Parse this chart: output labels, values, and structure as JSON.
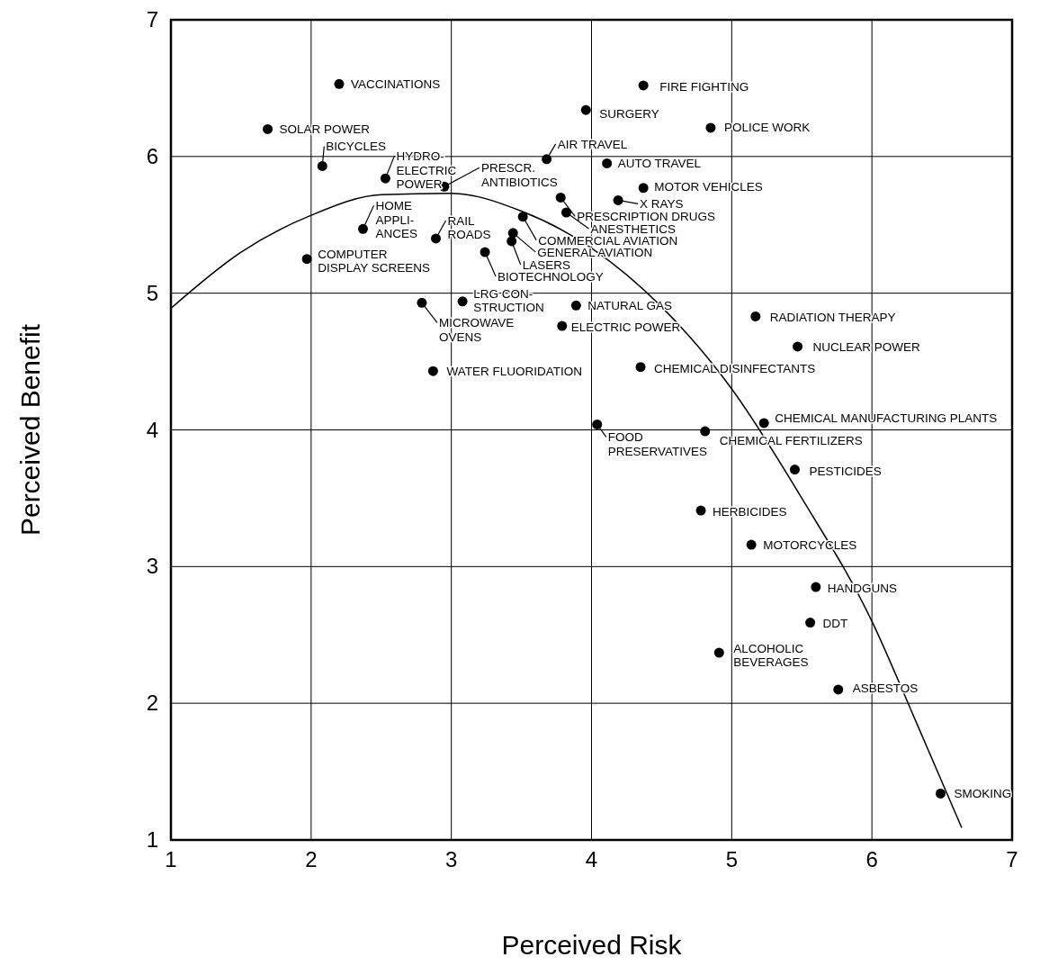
{
  "chart_data": {
    "type": "scatter",
    "xlabel": "Perceived Risk",
    "ylabel": "Perceived Benefit",
    "xlim": [
      1,
      7
    ],
    "ylim": [
      1,
      7
    ],
    "xticks": [
      1,
      2,
      3,
      4,
      5,
      6,
      7
    ],
    "yticks": [
      1,
      2,
      3,
      4,
      5,
      6,
      7
    ],
    "grid": true,
    "marker": "circle",
    "series": [
      {
        "color": "#000000",
        "x": [
          2.2,
          1.69,
          2.08,
          2.53,
          2.95,
          3.68,
          3.96,
          4.37,
          4.85,
          4.11,
          4.37,
          4.19,
          3.78,
          3.82,
          3.51,
          3.44,
          3.43,
          3.24,
          2.37,
          2.89,
          1.97,
          3.08,
          2.79,
          3.89,
          3.79,
          2.87,
          4.35,
          5.17,
          5.47,
          5.23,
          4.04,
          4.81,
          5.45,
          4.78,
          5.14,
          5.6,
          5.56,
          4.91,
          5.76,
          6.49
        ],
        "values": [
          6.53,
          6.2,
          5.93,
          5.84,
          5.78,
          5.98,
          6.34,
          6.52,
          6.21,
          5.95,
          5.77,
          5.68,
          5.7,
          5.59,
          5.56,
          5.44,
          5.38,
          5.3,
          5.47,
          5.4,
          5.25,
          4.94,
          4.93,
          4.91,
          4.76,
          4.43,
          4.46,
          4.83,
          4.61,
          4.05,
          4.04,
          3.99,
          3.71,
          3.41,
          3.16,
          2.85,
          2.59,
          2.37,
          2.1,
          1.34
        ]
      },
      {
        "type": "line",
        "color": "#000000",
        "marker": "none",
        "x": [
          1,
          1.5,
          2,
          2.5,
          3,
          3.5,
          4,
          4.5,
          5,
          5.5,
          6,
          6.3,
          6.64
        ],
        "values": [
          4.89,
          5.3,
          5.57,
          5.72,
          5.73,
          5.6,
          5.33,
          4.9,
          4.3,
          3.5,
          2.6,
          1.9,
          1.09
        ]
      }
    ],
    "annotations": [
      {
        "text": "VACCINATIONS",
        "x": 2.2,
        "y": 6.53
      },
      {
        "text": "SOLAR POWER",
        "x": 1.69,
        "y": 6.2
      },
      {
        "text": "BICYCLES",
        "x": 2.08,
        "y": 5.93
      },
      {
        "text": "HYDRO-\nELECTRIC\nPOWER",
        "x": 2.53,
        "y": 5.84
      },
      {
        "text": "PRESCR.\nANTIBIOTICS",
        "x": 2.95,
        "y": 5.78
      },
      {
        "text": "AIR TRAVEL",
        "x": 3.68,
        "y": 5.98
      },
      {
        "text": "SURGERY",
        "x": 3.96,
        "y": 6.34
      },
      {
        "text": "FIRE FIGHTING",
        "x": 4.37,
        "y": 6.52
      },
      {
        "text": "POLICE WORK",
        "x": 4.85,
        "y": 6.21
      },
      {
        "text": "AUTO TRAVEL",
        "x": 4.11,
        "y": 5.95
      },
      {
        "text": "MOTOR VEHICLES",
        "x": 4.37,
        "y": 5.77
      },
      {
        "text": "X RAYS",
        "x": 4.19,
        "y": 5.68
      },
      {
        "text": "PRESCRIPTION DRUGS",
        "x": 3.78,
        "y": 5.7
      },
      {
        "text": "ANESTHETICS",
        "x": 3.82,
        "y": 5.59
      },
      {
        "text": "COMMERCIAL AVIATION",
        "x": 3.51,
        "y": 5.56
      },
      {
        "text": "GENERAL AVIATION",
        "x": 3.44,
        "y": 5.44
      },
      {
        "text": "LASERS",
        "x": 3.43,
        "y": 5.38
      },
      {
        "text": "BIOTECHNOLOGY",
        "x": 3.24,
        "y": 5.3
      },
      {
        "text": "HOME\nAPPLI-\nANCES",
        "x": 2.37,
        "y": 5.47
      },
      {
        "text": "RAIL\nROADS",
        "x": 2.89,
        "y": 5.4
      },
      {
        "text": "COMPUTER\nDISPLAY SCREENS",
        "x": 1.97,
        "y": 5.25
      },
      {
        "text": "LRG CON-\nSTRUCTION",
        "x": 3.08,
        "y": 4.94
      },
      {
        "text": "MICROWAVE\nOVENS",
        "x": 2.79,
        "y": 4.93
      },
      {
        "text": "NATURAL GAS",
        "x": 3.89,
        "y": 4.91
      },
      {
        "text": "ELECTRIC POWER",
        "x": 3.79,
        "y": 4.76
      },
      {
        "text": "WATER FLUORIDATION",
        "x": 2.87,
        "y": 4.43
      },
      {
        "text": "CHEMICAL DISINFECTANTS",
        "x": 4.35,
        "y": 4.46
      },
      {
        "text": "RADIATION THERAPY",
        "x": 5.17,
        "y": 4.83
      },
      {
        "text": "NUCLEAR POWER",
        "x": 5.47,
        "y": 4.61
      },
      {
        "text": "CHEMICAL MANUFACTURING PLANTS",
        "x": 5.23,
        "y": 4.05
      },
      {
        "text": "FOOD\nPRESERVATIVES",
        "x": 4.04,
        "y": 4.04
      },
      {
        "text": "CHEMICAL FERTILIZERS",
        "x": 4.81,
        "y": 3.99
      },
      {
        "text": "PESTICIDES",
        "x": 5.45,
        "y": 3.71
      },
      {
        "text": "HERBICIDES",
        "x": 4.78,
        "y": 3.41
      },
      {
        "text": "MOTORCYCLES",
        "x": 5.14,
        "y": 3.16
      },
      {
        "text": "HANDGUNS",
        "x": 5.6,
        "y": 2.85
      },
      {
        "text": "DDT",
        "x": 5.56,
        "y": 2.59
      },
      {
        "text": "ALCOHOLIC\nBEVERAGES",
        "x": 4.91,
        "y": 2.37
      },
      {
        "text": "ASBESTOS",
        "x": 5.76,
        "y": 2.1
      },
      {
        "text": "SMOKING",
        "x": 6.49,
        "y": 1.34
      }
    ]
  }
}
